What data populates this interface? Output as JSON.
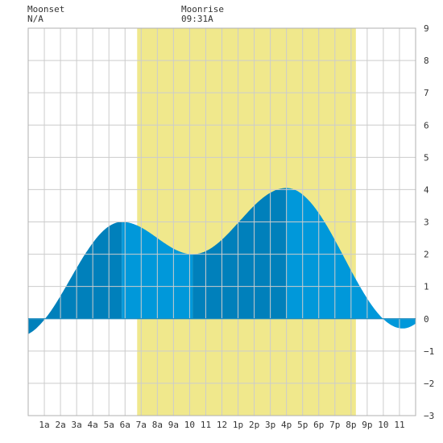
{
  "header": {
    "moonset_label": "Moonset",
    "moonset_value": "N/A",
    "moonrise_label": "Moonrise",
    "moonrise_value": "09:31A"
  },
  "colors": {
    "plot_background": "#ffffff",
    "grid": "#cccccc",
    "daylight_band": "#f0e88c",
    "tide_dark": "#0080bb",
    "tide_light": "#0098da",
    "zero_line": "#0080bb"
  },
  "chart_data": {
    "type": "area",
    "xlabel": "",
    "ylabel": "",
    "grid": true,
    "x_range_hours": [
      0,
      24
    ],
    "ylim": [
      -3,
      9
    ],
    "y_ticks": [
      -3,
      -2,
      -1,
      0,
      1,
      2,
      3,
      4,
      5,
      6,
      7,
      8,
      9
    ],
    "y_axis_position": "right",
    "x_ticks": [
      {
        "hour": 1,
        "label": "1a"
      },
      {
        "hour": 2,
        "label": "2a"
      },
      {
        "hour": 3,
        "label": "3a"
      },
      {
        "hour": 4,
        "label": "4a"
      },
      {
        "hour": 5,
        "label": "5a"
      },
      {
        "hour": 6,
        "label": "6a"
      },
      {
        "hour": 7,
        "label": "7a"
      },
      {
        "hour": 8,
        "label": "8a"
      },
      {
        "hour": 9,
        "label": "9a"
      },
      {
        "hour": 10,
        "label": "10"
      },
      {
        "hour": 11,
        "label": "11"
      },
      {
        "hour": 12,
        "label": "12"
      },
      {
        "hour": 13,
        "label": "1p"
      },
      {
        "hour": 14,
        "label": "2p"
      },
      {
        "hour": 15,
        "label": "3p"
      },
      {
        "hour": 16,
        "label": "4p"
      },
      {
        "hour": 17,
        "label": "5p"
      },
      {
        "hour": 18,
        "label": "6p"
      },
      {
        "hour": 19,
        "label": "7p"
      },
      {
        "hour": 20,
        "label": "8p"
      },
      {
        "hour": 21,
        "label": "9p"
      },
      {
        "hour": 22,
        "label": "10"
      },
      {
        "hour": 23,
        "label": "11"
      }
    ],
    "daylight_hours": [
      6.75,
      20.3
    ],
    "tide_extrema": [
      {
        "hour": -0.6,
        "value": -0.55
      },
      {
        "hour": 5.8,
        "value": 3.0
      },
      {
        "hour": 10.2,
        "value": 2.0
      },
      {
        "hour": 16.0,
        "value": 4.05
      },
      {
        "hour": 23.2,
        "value": -0.3
      },
      {
        "hour": 29.0,
        "value": 3.0
      }
    ],
    "shade_boundaries_hours": [
      5.8,
      10.2,
      16.0
    ]
  }
}
